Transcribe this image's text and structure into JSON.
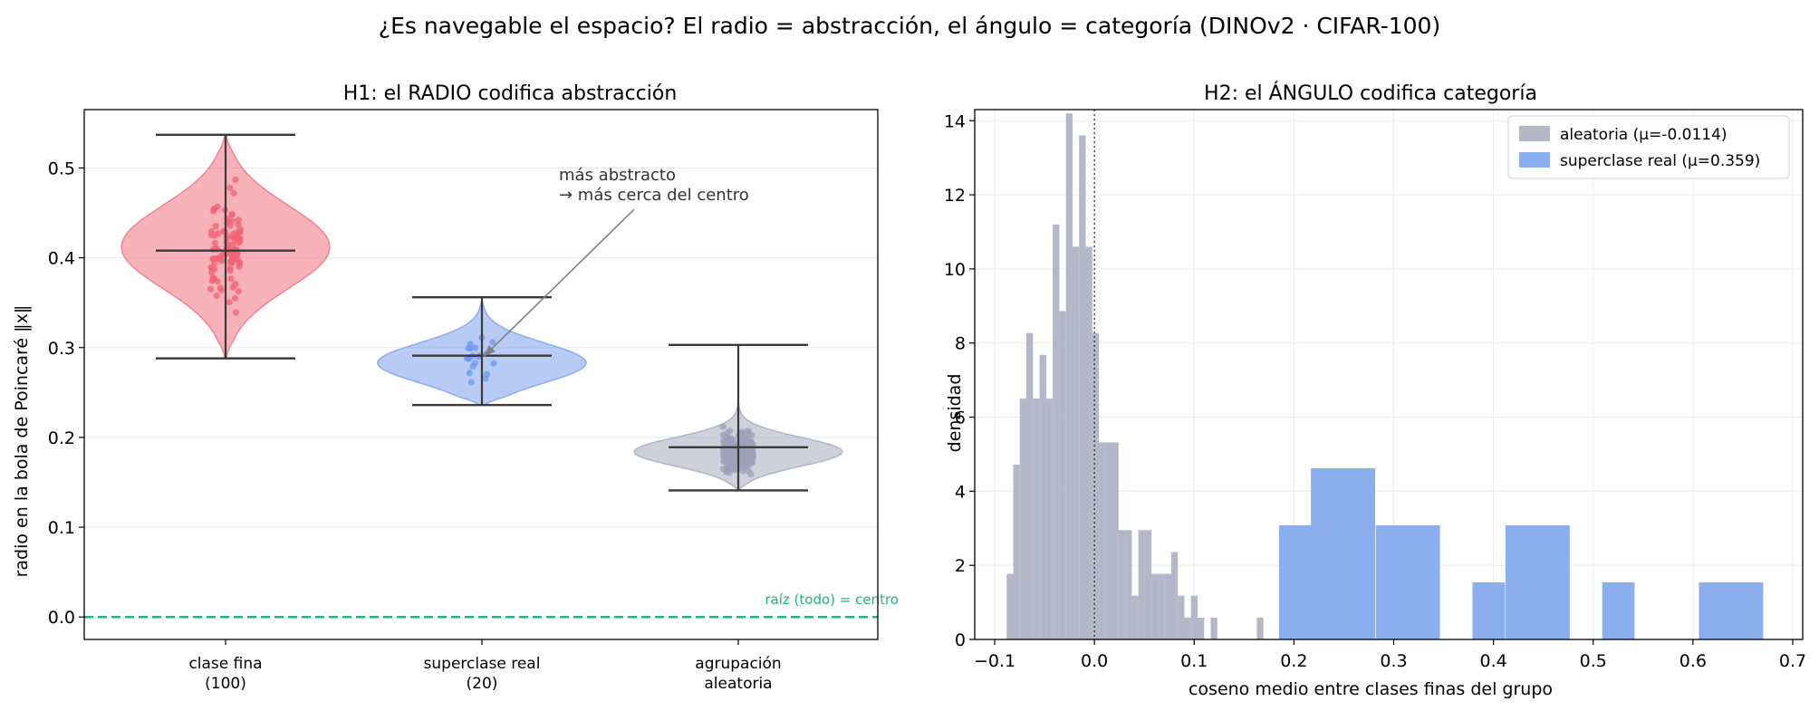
{
  "suptitle": "¿Es navegable el espacio? El radio = abstracción, el ángulo = categoría (DINOv2 · CIFAR-100)",
  "colors": {
    "fine": "#f06474",
    "super": "#6f98ec",
    "random": "#9da2b8",
    "root": "#22b573",
    "hist_random": "#b3b7c8",
    "hist_super": "#8aaeee"
  },
  "chart_data": [
    {
      "type": "violin",
      "title": "H1: el RADIO codifica abstracción",
      "xlabel": "",
      "ylabel": "radio en la bola de Poincaré  ‖x‖",
      "ylim": [
        -0.025,
        0.565
      ],
      "yticks": [
        "0.0",
        "0.1",
        "0.2",
        "0.3",
        "0.4",
        "0.5"
      ],
      "grid": true,
      "categories": [
        "clase fina\n(100)",
        "superclase real\n(20)",
        "agrupación\naleatoria"
      ],
      "groups": [
        {
          "name": "clase fina (100)",
          "n": 100,
          "min": 0.288,
          "median": 0.408,
          "max": 0.537,
          "mode": 0.412,
          "spread": 0.046
        },
        {
          "name": "superclase real (20)",
          "n": 20,
          "min": 0.236,
          "median": 0.291,
          "max": 0.356,
          "mode": 0.283,
          "spread": 0.022
        },
        {
          "name": "agrupación aleatoria",
          "n": 1000,
          "min": 0.141,
          "median": 0.189,
          "max": 0.303,
          "mode": 0.184,
          "spread": 0.016
        }
      ],
      "reference_line": {
        "y": 0.0,
        "label": "raíz (todo) = centro"
      },
      "annotation": {
        "text_line1": "más abstracto",
        "text_line2": "→ más cerca del centro",
        "text_at": [
          2.3,
          0.47
        ],
        "arrow_to": [
          2.0,
          0.29
        ]
      }
    },
    {
      "type": "histogram",
      "title": "H2: el ÁNGULO codifica categoría",
      "xlabel": "coseno medio entre clases finas del grupo",
      "ylabel": "densidad",
      "xlim": [
        -0.12,
        0.71
      ],
      "ylim": [
        0,
        14.3
      ],
      "xticks": [
        "−0.1",
        "0.0",
        "0.1",
        "0.2",
        "0.3",
        "0.4",
        "0.5",
        "0.6",
        "0.7"
      ],
      "yticks": [
        "0",
        "2",
        "4",
        "6",
        "8",
        "10",
        "12",
        "14"
      ],
      "grid": true,
      "legend_position": "top-right",
      "vline_x": 0.0,
      "series": [
        {
          "name": "aleatoria (μ=-0.0114)",
          "bin_width": 0.0066,
          "bins": [
            [
              -0.088,
              1.77
            ],
            [
              -0.0814,
              4.72
            ],
            [
              -0.0748,
              6.5
            ],
            [
              -0.0682,
              8.27
            ],
            [
              -0.0616,
              6.5
            ],
            [
              -0.055,
              7.68
            ],
            [
              -0.0484,
              6.5
            ],
            [
              -0.0418,
              11.2
            ],
            [
              -0.0352,
              8.86
            ],
            [
              -0.0286,
              14.2
            ],
            [
              -0.022,
              10.6
            ],
            [
              -0.0154,
              13.6
            ],
            [
              -0.0088,
              10.6
            ],
            [
              -0.0022,
              8.27
            ],
            [
              0.0044,
              5.32
            ],
            [
              0.011,
              5.32
            ],
            [
              0.0176,
              5.32
            ],
            [
              0.0242,
              2.95
            ],
            [
              0.0308,
              2.95
            ],
            [
              0.0374,
              1.18
            ],
            [
              0.044,
              2.95
            ],
            [
              0.0506,
              2.95
            ],
            [
              0.0572,
              1.77
            ],
            [
              0.0638,
              1.77
            ],
            [
              0.0704,
              1.77
            ],
            [
              0.077,
              2.36
            ],
            [
              0.0836,
              1.18
            ],
            [
              0.0902,
              0.59
            ],
            [
              0.0968,
              1.18
            ],
            [
              0.1034,
              0.59
            ],
            [
              0.11,
              0.0
            ],
            [
              0.1166,
              0.59
            ],
            [
              0.1232,
              0.0
            ],
            [
              0.1298,
              0.0
            ],
            [
              0.1364,
              0.0
            ],
            [
              0.143,
              0.0
            ],
            [
              0.1496,
              0.0
            ],
            [
              0.1562,
              0.0
            ],
            [
              0.1628,
              0.59
            ]
          ]
        },
        {
          "name": "superclase real (μ=0.359)",
          "bin_width": 0.0324,
          "bins": [
            [
              0.185,
              3.08
            ],
            [
              0.217,
              4.62
            ],
            [
              0.249,
              4.62
            ],
            [
              0.282,
              3.08
            ],
            [
              0.314,
              3.08
            ],
            [
              0.347,
              0.0
            ],
            [
              0.379,
              1.54
            ],
            [
              0.412,
              3.08
            ],
            [
              0.444,
              3.08
            ],
            [
              0.476,
              0.0
            ],
            [
              0.509,
              1.54
            ],
            [
              0.541,
              0.0
            ],
            [
              0.573,
              0.0
            ],
            [
              0.606,
              1.54
            ],
            [
              0.638,
              1.54
            ]
          ]
        }
      ]
    }
  ]
}
